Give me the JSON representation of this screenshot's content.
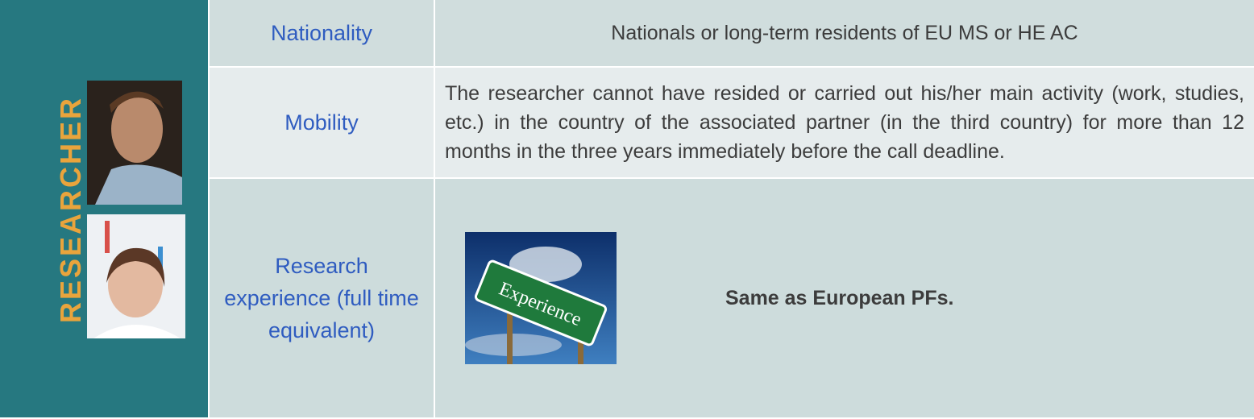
{
  "side_label": "RESEARCHER",
  "table": {
    "rows": [
      [
        "Nationality",
        "Nationals or long-term residents of EU MS or HE AC"
      ],
      [
        "Mobility",
        "The researcher cannot have resided or carried out his/her main activity (work, studies, etc.) in the country of the associated partner (in the third country) for more than 12 months in the three years immediately before the call deadline."
      ],
      [
        "Research experience (full time equivalent)",
        "Same as European PFs."
      ]
    ]
  },
  "image_sign": "Experience"
}
